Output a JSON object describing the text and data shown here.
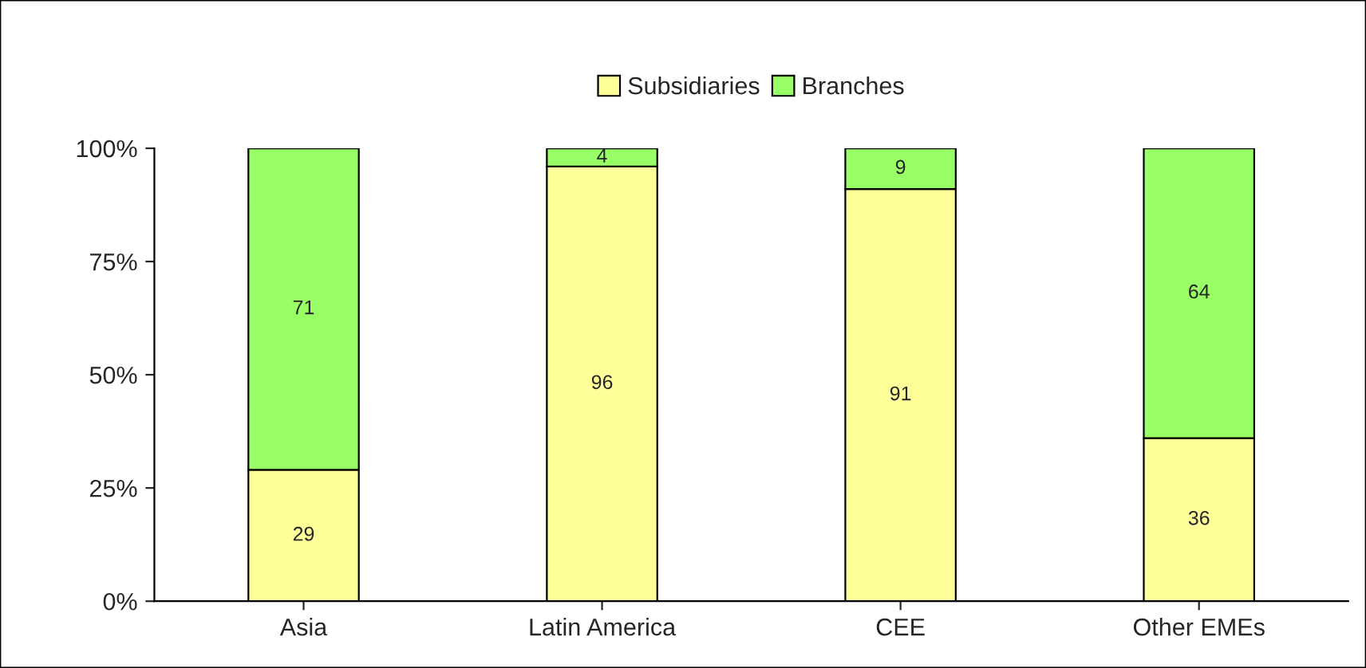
{
  "chart_data": {
    "type": "bar",
    "stacked": true,
    "categories": [
      "Asia",
      "Latin America",
      "CEE",
      "Other EMEs"
    ],
    "series": [
      {
        "name": "Subsidiaries",
        "color": "#ffff99",
        "values": [
          29,
          96,
          91,
          36
        ]
      },
      {
        "name": "Branches",
        "color": "#99ff66",
        "values": [
          71,
          4,
          9,
          64
        ]
      }
    ],
    "ylim": [
      0,
      100
    ],
    "yticks": [
      {
        "value": 0,
        "label": "0%"
      },
      {
        "value": 25,
        "label": "25%"
      },
      {
        "value": 50,
        "label": "50%"
      },
      {
        "value": 75,
        "label": "75%"
      },
      {
        "value": 100,
        "label": "100%"
      }
    ],
    "data_labels": true,
    "legend": "top",
    "grid": false
  }
}
